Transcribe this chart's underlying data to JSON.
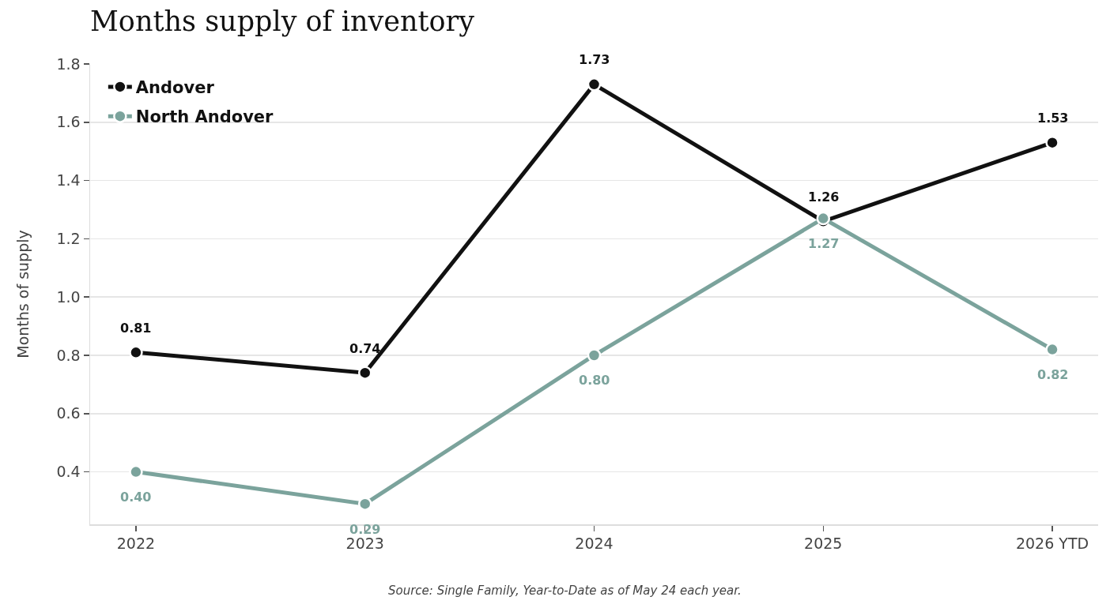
{
  "chart_data": {
    "type": "line",
    "title": "Months supply of inventory",
    "ylabel": "Months of supply",
    "categories": [
      "2022",
      "2023",
      "2024",
      "2025",
      "2026 YTD"
    ],
    "series": [
      {
        "name": "Andover",
        "color": "#111111",
        "values": [
          0.81,
          0.74,
          1.73,
          1.26,
          1.53
        ],
        "value_labels": [
          "0.81",
          "0.74",
          "1.73",
          "1.26",
          "1.53"
        ]
      },
      {
        "name": "North Andover",
        "color": "#7ba39c",
        "values": [
          0.4,
          0.29,
          0.8,
          1.27,
          0.82
        ],
        "value_labels": [
          "0.40",
          "0.29",
          "0.80",
          "1.27",
          "0.82"
        ]
      }
    ],
    "ylim": [
      0.22,
      1.8
    ],
    "yticks": [
      0.4,
      0.6,
      0.8,
      {
        "value": 1.0,
        "label": "1.0"
      },
      1.2,
      1.4,
      1.6,
      1.8
    ],
    "grid": "y",
    "legend": "top left",
    "marker": "circle",
    "line_style": "solid",
    "annotations": [
      "Source: Single Family, Year-to-Date as of May 24 each year."
    ]
  }
}
